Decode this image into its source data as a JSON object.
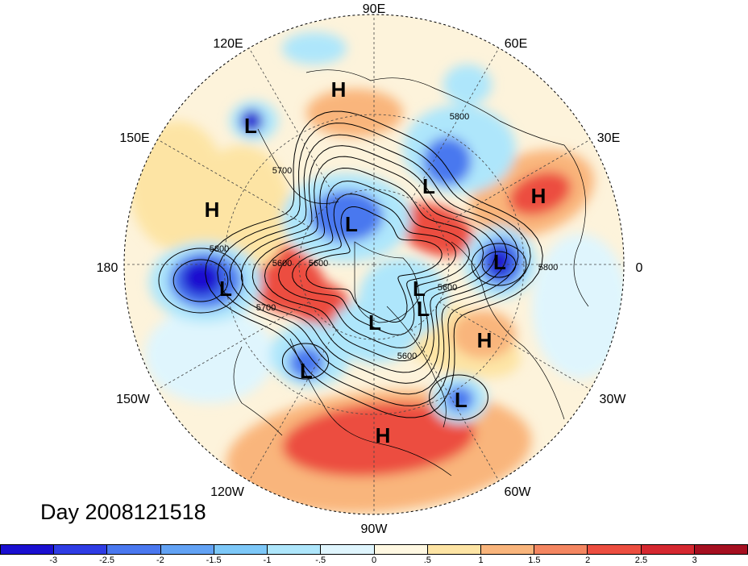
{
  "title": "Day 2008121518",
  "longitude_labels": [
    "90E",
    "60E",
    "30E",
    "0",
    "30W",
    "60W",
    "90W",
    "120W",
    "150W",
    "180",
    "150E",
    "120E"
  ],
  "contour_labels": [
    "5800",
    "5700",
    "5600",
    "5800",
    "5600",
    "5600",
    "5800",
    "5700",
    "5600"
  ],
  "pressure_centers": [
    {
      "label": "H",
      "region": "north-central Siberia"
    },
    {
      "label": "L",
      "region": "Kamchatka"
    },
    {
      "label": "H",
      "region": "western Pacific"
    },
    {
      "label": "L",
      "region": "central Pacific"
    },
    {
      "label": "L",
      "region": "Arctic Ocean"
    },
    {
      "label": "L",
      "region": "West Siberia"
    },
    {
      "label": "H",
      "region": "Middle East"
    },
    {
      "label": "L",
      "region": "west of Europe"
    },
    {
      "label": "L",
      "region": "Greenland"
    },
    {
      "label": "L",
      "region": "Canadian Arctic"
    },
    {
      "label": "H",
      "region": "North Atlantic"
    },
    {
      "label": "L",
      "region": "Hudson Bay"
    },
    {
      "label": "L",
      "region": "Great Lakes"
    },
    {
      "label": "L",
      "region": "subtropical Atlantic"
    },
    {
      "label": "H",
      "region": "Gulf of Mexico"
    }
  ],
  "colorbar": {
    "colors": [
      "#1a0fd0",
      "#2f3ce4",
      "#4a78ef",
      "#62a2f4",
      "#7dc8f8",
      "#aee6fb",
      "#dff5fd",
      "#fff8e2",
      "#fde4a4",
      "#f9b57c",
      "#f48661",
      "#ec4e40",
      "#d52830",
      "#a50f20"
    ],
    "tick_labels": [
      "-3",
      "-2.5",
      "-2",
      "-1.5",
      "-1",
      "-.5",
      "0",
      ".5",
      "1",
      "1.5",
      "2",
      "2.5",
      "3"
    ]
  },
  "field_colors": {
    "neutral": "#fdf3db",
    "pale_warm": "#fde4a4",
    "warm": "#f9b57c",
    "hot": "#ec4e40",
    "pale_cool": "#dff5fd",
    "cool": "#aee6fb",
    "cold": "#4a78ef",
    "coldest": "#1a0fd0"
  }
}
